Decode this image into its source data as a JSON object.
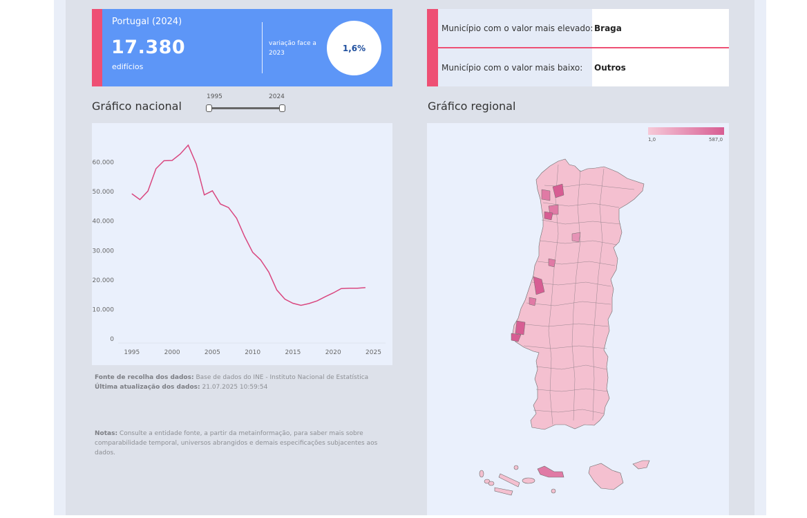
{
  "kpi": {
    "title": "Portugal (2024)",
    "value": "17.380",
    "unit": "edifícios",
    "change_label": "variação face a 2023",
    "change_value": "1,6%",
    "accent_color": "#ee4f74",
    "bg_color": "#5d96f7"
  },
  "municipality": {
    "highest_label": "Município com o valor mais elevado:",
    "highest_value": "Braga",
    "lowest_label": "Município com o valor mais baixo:",
    "lowest_value": "Outros"
  },
  "national": {
    "title": "Gráfico nacional",
    "slider": {
      "start": "1995",
      "end": "2024"
    }
  },
  "regional": {
    "title": "Gráfico regional",
    "legend": {
      "min": "1,0",
      "max": "587,0"
    }
  },
  "footer": {
    "source_label": "Fonte de recolha dos dados:",
    "source_value": "Base de dados do INE - Instituto Nacional de Estatística",
    "updated_label": "Última atualização dos dados:",
    "updated_value": "21.07.2025 10:59:54",
    "notes_label": "Notas:",
    "notes_value": "Consulte a entidade fonte, a partir da metainformação, para saber mais sobre comparabilidade temporal, universos abrangidos e demais especificações subjacentes aos dados."
  },
  "chart_data": {
    "type": "line",
    "x": [
      1995,
      1996,
      1997,
      1998,
      1999,
      2000,
      2001,
      2002,
      2003,
      2004,
      2005,
      2006,
      2007,
      2008,
      2009,
      2010,
      2011,
      2012,
      2013,
      2014,
      2015,
      2016,
      2017,
      2018,
      2019,
      2020,
      2021,
      2022,
      2023,
      2024
    ],
    "series": [
      {
        "values": [
          49300,
          47300,
          50200,
          57800,
          60500,
          60600,
          62800,
          65800,
          59400,
          48900,
          50300,
          45800,
          44600,
          41000,
          34800,
          29400,
          26800,
          22700,
          16600,
          13500,
          12100,
          11400,
          12000,
          12900,
          14300,
          15600,
          17100,
          17200,
          17200,
          17400
        ]
      }
    ],
    "xticks": [
      "1995",
      "2000",
      "2005",
      "2010",
      "2015",
      "2020",
      "2025"
    ],
    "yticks": [
      "0",
      "10.000",
      "20.000",
      "30.000",
      "40.000",
      "50.000",
      "60.000"
    ],
    "xlim": [
      1993.3,
      2026.5
    ],
    "ylim": [
      0,
      70000
    ],
    "line_color": "#d9477f",
    "grid": false
  }
}
